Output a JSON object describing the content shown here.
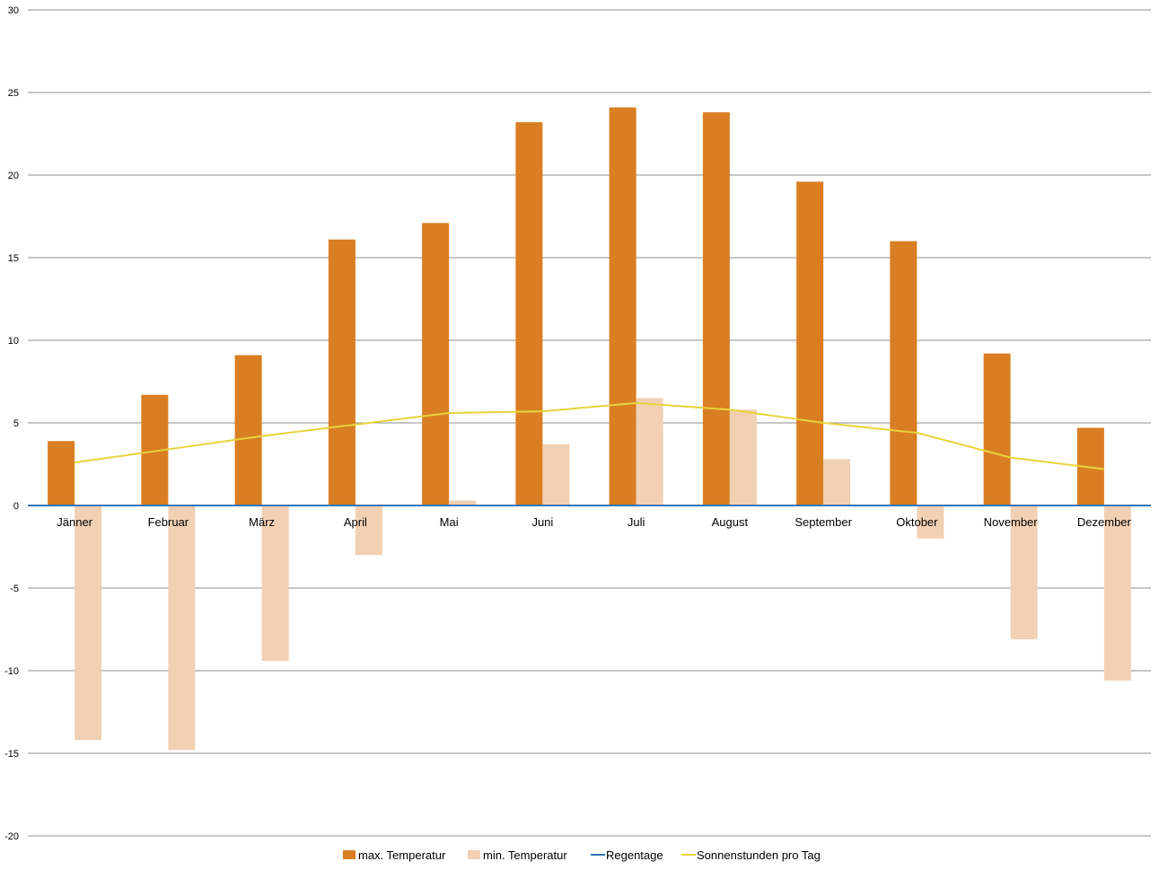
{
  "chart_data": {
    "type": "bar",
    "categories": [
      "Jänner",
      "Februar",
      "März",
      "April",
      "Mai",
      "Juni",
      "Juli",
      "August",
      "September",
      "Oktober",
      "November",
      "Dezember"
    ],
    "series": [
      {
        "name": "max. Temperatur",
        "type": "bar",
        "color": "#D97E22",
        "values": [
          3.9,
          6.7,
          9.1,
          16.1,
          17.1,
          23.2,
          24.1,
          23.8,
          19.6,
          16.0,
          9.2,
          4.7
        ]
      },
      {
        "name": "min. Temperatur",
        "type": "bar",
        "color": "#F2D0B4",
        "values": [
          -14.2,
          -14.8,
          -9.4,
          -3.0,
          0.3,
          3.7,
          6.5,
          5.8,
          2.8,
          -2.0,
          -8.1,
          -10.6
        ]
      },
      {
        "name": "Regentage",
        "type": "line",
        "color": "#2E75B6",
        "values": [
          0,
          0,
          0,
          0,
          0,
          0,
          0,
          0,
          0,
          0,
          0,
          0
        ]
      },
      {
        "name": "Sonnenstunden pro Tag",
        "type": "line",
        "color": "#E8D43C",
        "values": [
          2.6,
          3.4,
          4.2,
          4.9,
          5.6,
          5.7,
          6.2,
          5.8,
          5.0,
          4.4,
          2.9,
          2.2
        ]
      }
    ],
    "y_ticks": [
      "30",
      "25",
      "20",
      "15",
      "10",
      "5",
      "0",
      "-5",
      "-10",
      "-15",
      "-20"
    ],
    "ylim": [
      -20,
      30
    ],
    "grid": true,
    "legend_position": "bottom"
  }
}
